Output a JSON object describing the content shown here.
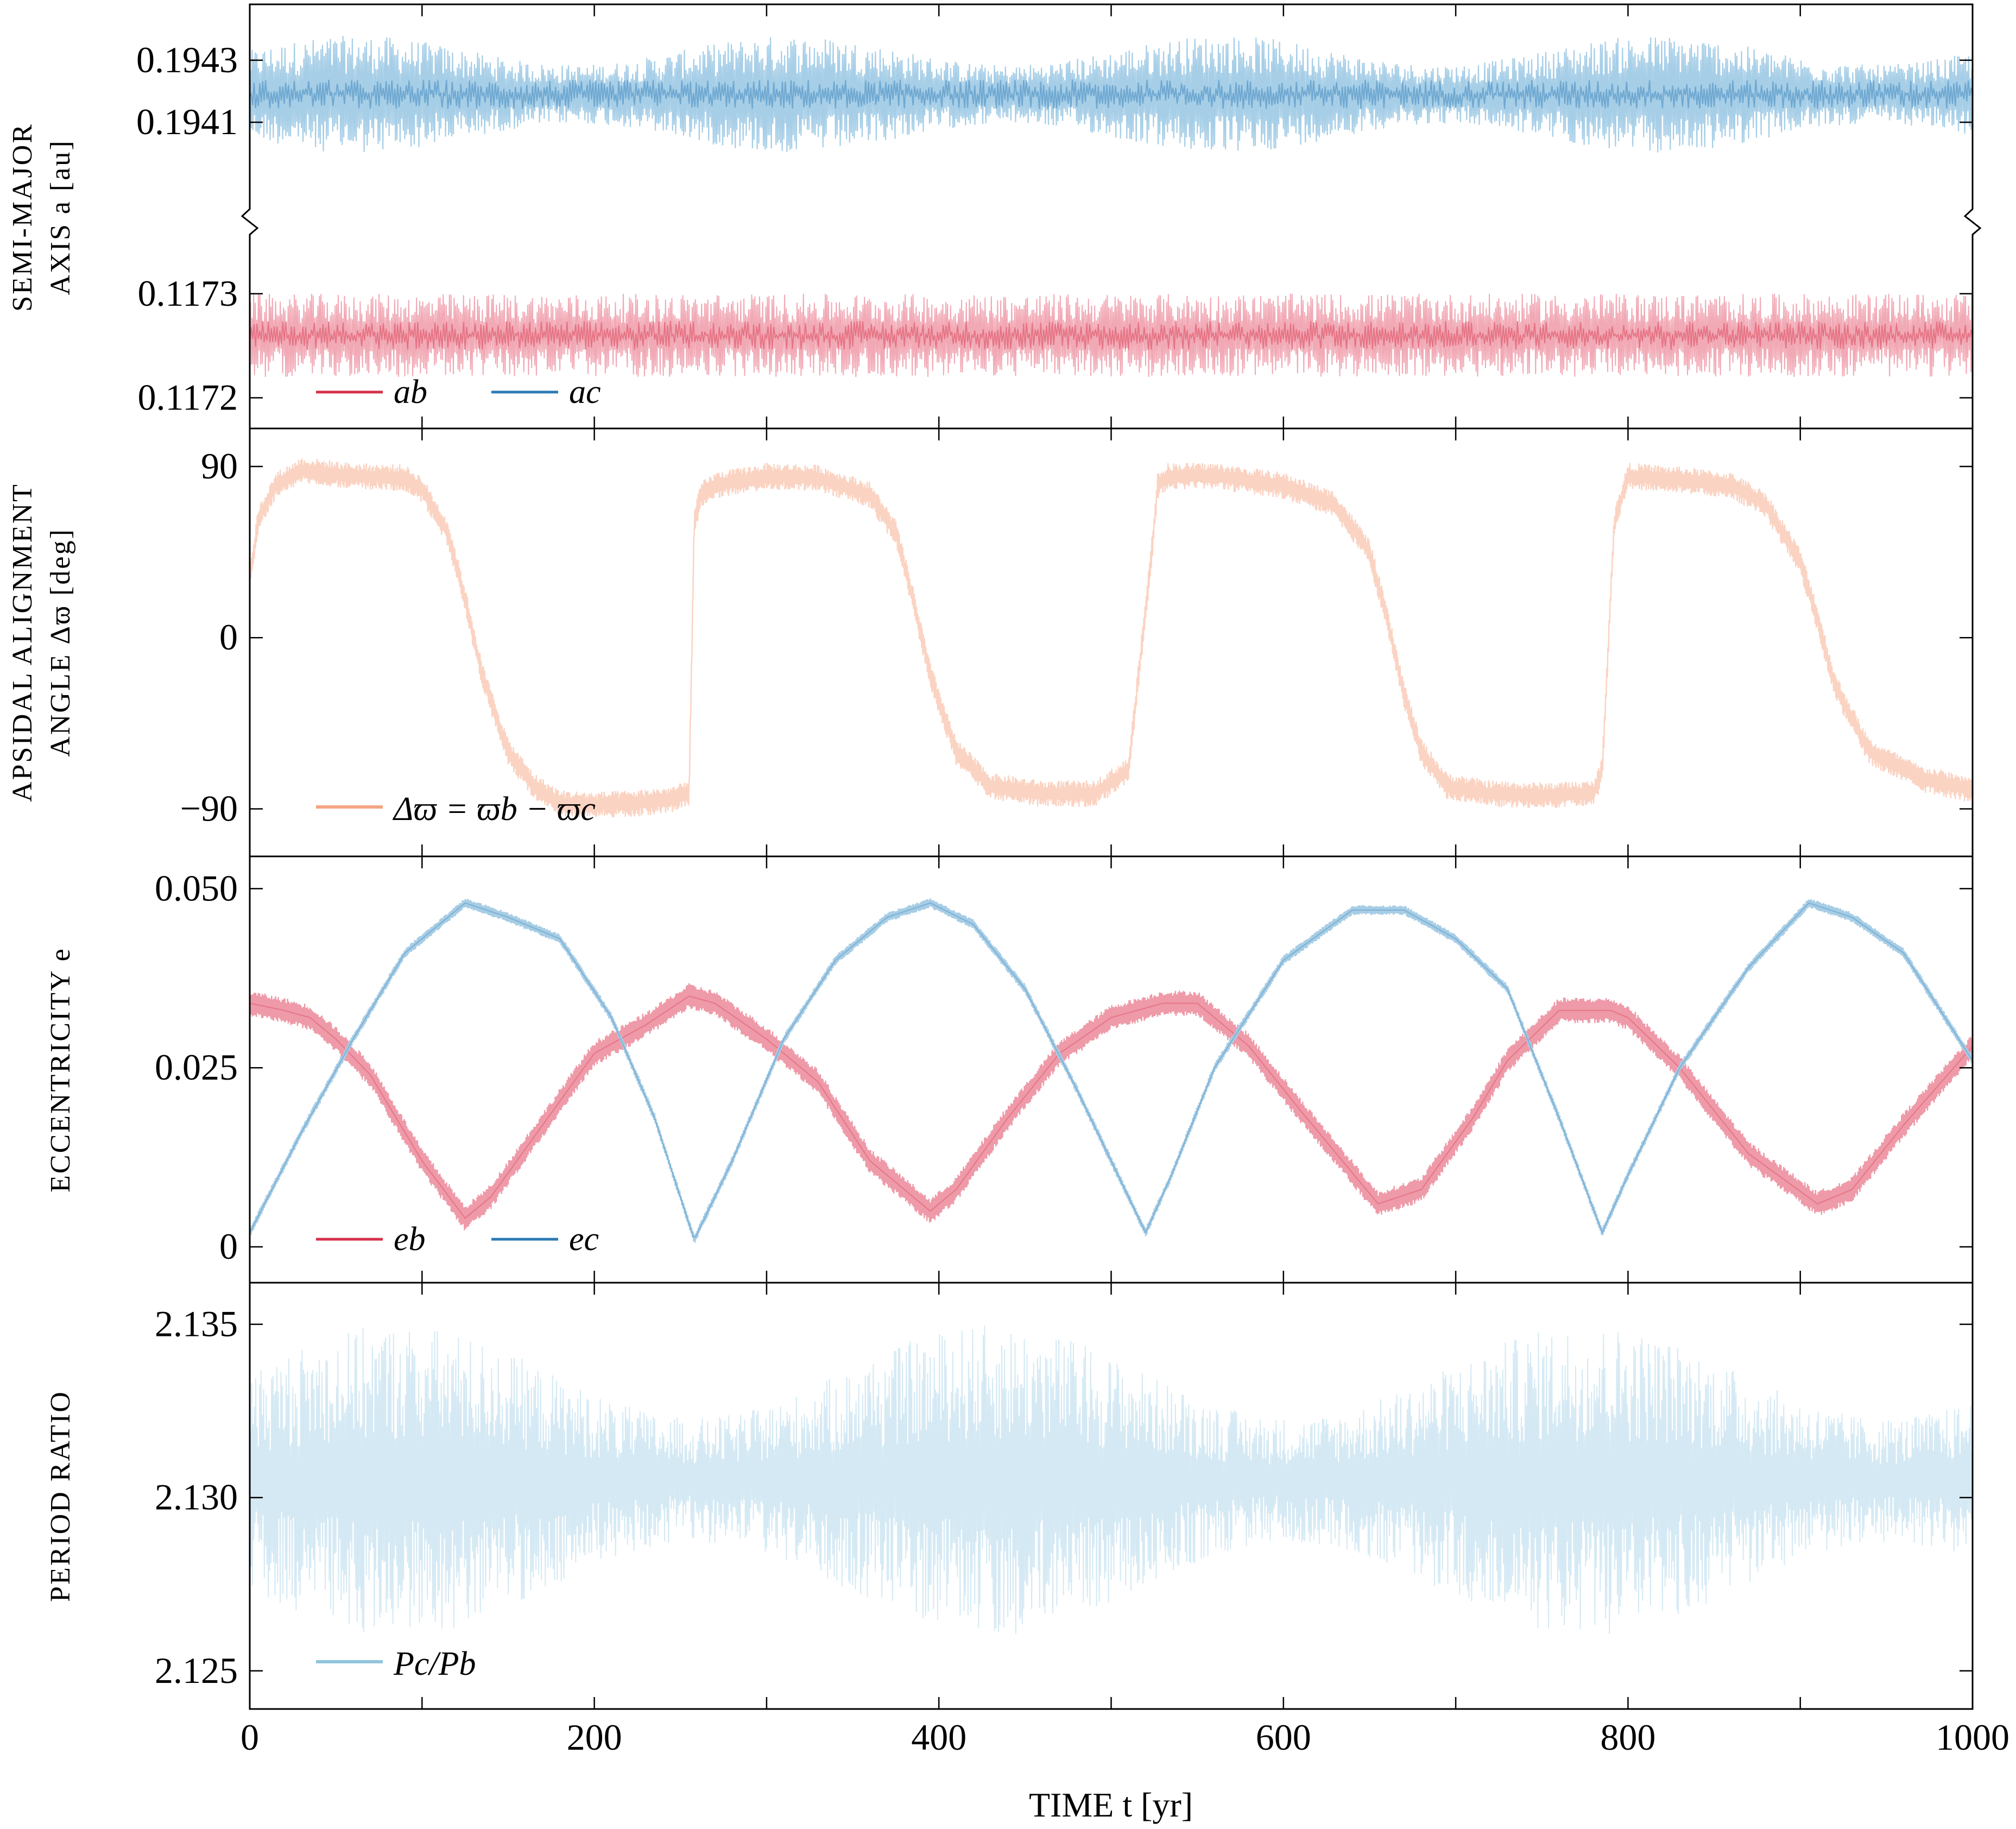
{
  "chart_data": [
    {
      "type": "line",
      "ylabel_lines": [
        "SEMI-MAJOR",
        "AXIS a [au]"
      ],
      "broken_axis": true,
      "upper_yticks": [
        "0.1943",
        "0.1941"
      ],
      "lower_yticks": [
        "0.1173",
        "0.1172"
      ],
      "upper_ylim": [
        0.19385,
        0.19448
      ],
      "lower_ylim": [
        0.11717,
        0.11735
      ],
      "series": [
        {
          "name": "a_b",
          "label": "ab",
          "color": "#d6304a",
          "mean": 0.11726,
          "amplitude": 4e-05,
          "band_color": "#ee9aa8"
        },
        {
          "name": "a_c",
          "label": "ac",
          "color": "#2c7bb6",
          "mean": 0.19419,
          "amplitude": 0.00019,
          "band_color": "#9cc9e4"
        }
      ],
      "legend": [
        "ab",
        "ac"
      ],
      "legend_position": "bottom-left"
    },
    {
      "type": "line",
      "ylabel_lines": [
        "APSIDAL ALIGNMENT",
        "ANGLE Δϖ [deg]"
      ],
      "ylim": [
        -115,
        110
      ],
      "yticks": [
        "90",
        "0",
        "−90"
      ],
      "ytick_values": [
        90,
        0,
        -90
      ],
      "series": [
        {
          "name": "Δϖ = ϖb − ϖc",
          "color": "#f4a582",
          "band_color": "#fbd3c2",
          "x": [
            0,
            5,
            15,
            30,
            60,
            90,
            100,
            115,
            125,
            135,
            150,
            165,
            180,
            200,
            225,
            245,
            255,
            258,
            262,
            270,
            300,
            330,
            360,
            375,
            385,
            395,
            410,
            430,
            460,
            490,
            510,
            523,
            527,
            533,
            560,
            600,
            630,
            650,
            660,
            670,
            680,
            695,
            720,
            750,
            780,
            785,
            792,
            800,
            830,
            860,
            880,
            900,
            910,
            920,
            940,
            970,
            1000
          ],
          "y": [
            30,
            62,
            80,
            88,
            85,
            84,
            78,
            55,
            20,
            -20,
            -60,
            -78,
            -87,
            -88,
            -87,
            -85,
            -82,
            60,
            75,
            80,
            85,
            84,
            75,
            55,
            20,
            -20,
            -60,
            -78,
            -82,
            -82,
            -70,
            40,
            80,
            85,
            85,
            80,
            70,
            45,
            10,
            -30,
            -60,
            -78,
            -82,
            -83,
            -82,
            -70,
            60,
            85,
            83,
            80,
            70,
            40,
            10,
            -25,
            -60,
            -74,
            -80
          ],
          "jitter": 7
        }
      ],
      "legend": [
        "Δϖ = ϖb − ϖc"
      ],
      "legend_position": "bottom-left"
    },
    {
      "type": "line",
      "ylabel_lines": [
        "ECCENTRICITY e"
      ],
      "ylim": [
        -0.005,
        0.0545
      ],
      "yticks": [
        "0.050",
        "0.025",
        "0"
      ],
      "ytick_values": [
        0.05,
        0.025,
        0
      ],
      "series": [
        {
          "name": "e_b",
          "label": "eb",
          "color": "#d6304a",
          "band_color": "#ee9aa8",
          "x": [
            0,
            20,
            35,
            50,
            70,
            100,
            125,
            140,
            170,
            200,
            230,
            255,
            270,
            300,
            330,
            360,
            395,
            410,
            440,
            470,
            500,
            530,
            550,
            580,
            610,
            655,
            680,
            710,
            730,
            760,
            790,
            800,
            830,
            870,
            910,
            930,
            960,
            1000
          ],
          "y": [
            0.034,
            0.033,
            0.032,
            0.029,
            0.024,
            0.012,
            0.004,
            0.007,
            0.017,
            0.027,
            0.031,
            0.035,
            0.034,
            0.029,
            0.023,
            0.012,
            0.005,
            0.008,
            0.018,
            0.027,
            0.032,
            0.034,
            0.034,
            0.028,
            0.019,
            0.006,
            0.008,
            0.018,
            0.026,
            0.033,
            0.033,
            0.032,
            0.025,
            0.013,
            0.006,
            0.008,
            0.017,
            0.028
          ],
          "jitter": 0.0018
        },
        {
          "name": "e_c",
          "label": "ec",
          "color": "#2c7bb6",
          "band_color": "#a7cde5",
          "x": [
            0,
            30,
            60,
            90,
            125,
            150,
            180,
            210,
            235,
            258,
            280,
            310,
            340,
            370,
            395,
            420,
            450,
            480,
            510,
            520,
            535,
            560,
            600,
            640,
            670,
            700,
            730,
            760,
            785,
            800,
            830,
            870,
            905,
            930,
            960,
            1000
          ],
          "y": [
            0.002,
            0.016,
            0.029,
            0.041,
            0.048,
            0.046,
            0.043,
            0.032,
            0.018,
            0.001,
            0.012,
            0.029,
            0.04,
            0.046,
            0.048,
            0.045,
            0.036,
            0.022,
            0.007,
            0.002,
            0.01,
            0.025,
            0.04,
            0.047,
            0.047,
            0.043,
            0.036,
            0.018,
            0.002,
            0.01,
            0.025,
            0.039,
            0.048,
            0.046,
            0.041,
            0.026
          ],
          "jitter": 0.0007
        }
      ],
      "legend": [
        "eb",
        "ec"
      ],
      "legend_position": "bottom-left"
    },
    {
      "type": "line",
      "ylabel_lines": [
        "PERIOD RATIO"
      ],
      "ylim": [
        2.1239,
        2.1362
      ],
      "yticks": [
        "2.135",
        "2.130",
        "2.125"
      ],
      "ytick_values": [
        2.135,
        2.13,
        2.125
      ],
      "series": [
        {
          "name": "Pc/Pb",
          "color": "#92c5de",
          "band_color": "#d4e9f4",
          "mean": 2.1305,
          "amplitude": 0.0045
        }
      ],
      "legend": [
        "Pc/Pb"
      ],
      "legend_position": "bottom-left"
    }
  ],
  "xaxis": {
    "label": "TIME t [yr]",
    "xlim": [
      0,
      1000
    ],
    "ticks": [
      "0",
      "200",
      "400",
      "600",
      "800",
      "1000"
    ],
    "tick_values": [
      0,
      200,
      400,
      600,
      800,
      1000
    ]
  }
}
